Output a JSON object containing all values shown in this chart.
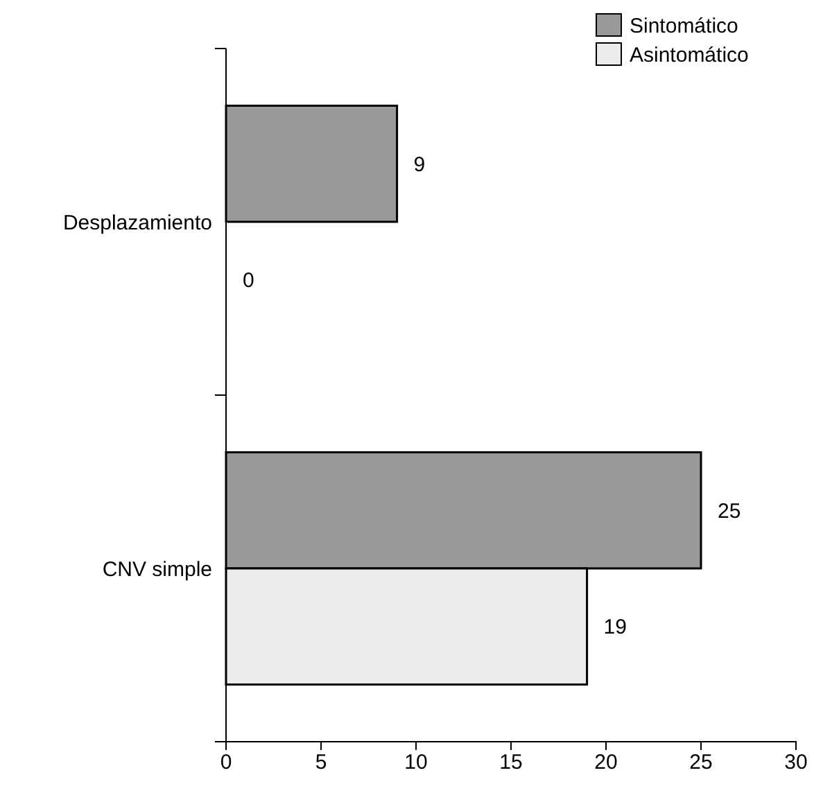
{
  "chart_data": {
    "type": "bar",
    "orientation": "horizontal",
    "categories": [
      "Desplazamiento",
      "CNV simple"
    ],
    "series": [
      {
        "name": "Sintomático",
        "color": "#999999",
        "values": [
          9,
          25
        ]
      },
      {
        "name": "Asintomático",
        "color": "#ebebeb",
        "values": [
          0,
          19
        ]
      }
    ],
    "xlim": [
      0,
      30
    ],
    "xticks": [
      0,
      5,
      10,
      15,
      20,
      25,
      30
    ],
    "data_labels": true,
    "legend": "top right",
    "grid": false
  }
}
